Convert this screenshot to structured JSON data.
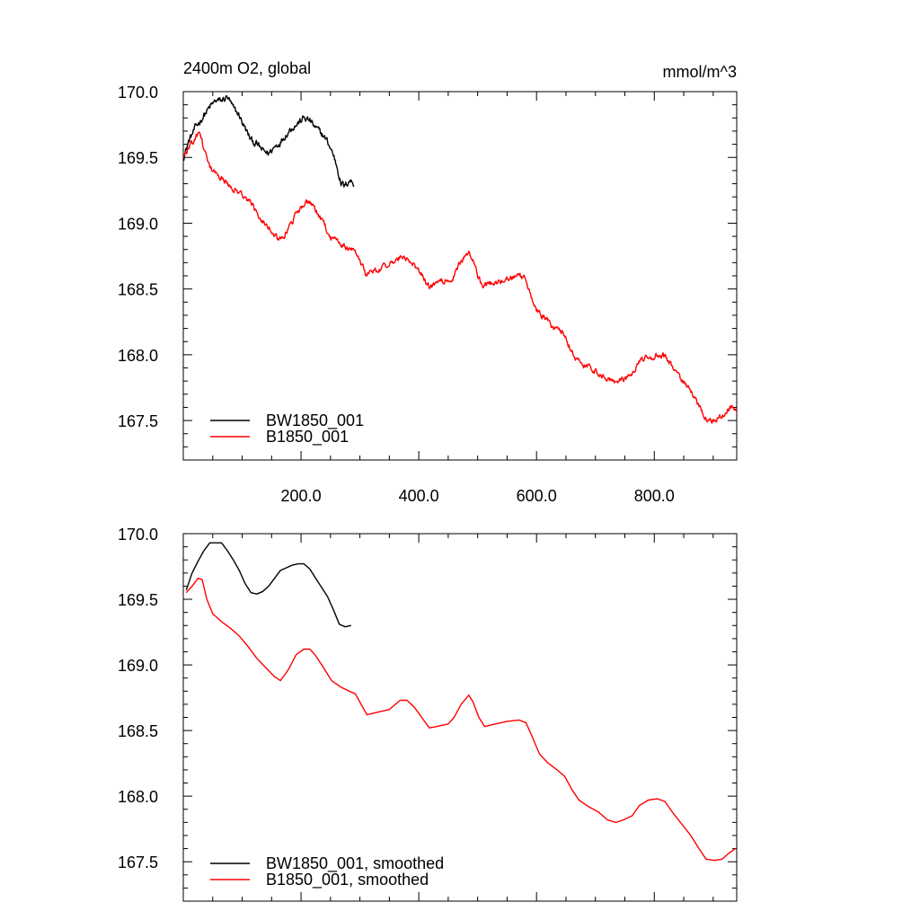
{
  "title_left": "2400m O2, global",
  "title_right": "mmol/m^3",
  "colors": {
    "control": "#000000",
    "experiment": "#ff0000",
    "axis": "#000000"
  },
  "chart_data": [
    {
      "type": "line",
      "panel": "top",
      "title": "2400m O2, global",
      "units": "mmol/m^3",
      "xlim": [
        0,
        940
      ],
      "ylim": [
        167.2,
        170.0
      ],
      "x_ticks": [
        200,
        400,
        600,
        800
      ],
      "x_tick_labels": [
        "200.0",
        "400.0",
        "600.0",
        "800.0"
      ],
      "y_ticks": [
        167.5,
        168.0,
        168.5,
        169.0,
        169.5,
        170.0
      ],
      "y_tick_labels": [
        "167.5",
        "168.0",
        "168.5",
        "169.0",
        "169.5",
        "170.0"
      ],
      "legend_position": "bottom-left",
      "series": [
        {
          "name": "BW1850_001",
          "color_key": "control",
          "noise": 0.022,
          "points": [
            [
              0,
              169.5
            ],
            [
              10,
              169.63
            ],
            [
              20,
              169.72
            ],
            [
              35,
              169.82
            ],
            [
              45,
              169.88
            ],
            [
              55,
              169.93
            ],
            [
              65,
              169.93
            ],
            [
              75,
              169.96
            ],
            [
              85,
              169.87
            ],
            [
              95,
              169.82
            ],
            [
              105,
              169.72
            ],
            [
              115,
              169.63
            ],
            [
              125,
              169.6
            ],
            [
              135,
              169.55
            ],
            [
              145,
              169.53
            ],
            [
              155,
              169.58
            ],
            [
              165,
              169.62
            ],
            [
              175,
              169.68
            ],
            [
              185,
              169.73
            ],
            [
              195,
              169.76
            ],
            [
              205,
              169.8
            ],
            [
              215,
              169.78
            ],
            [
              225,
              169.72
            ],
            [
              235,
              169.68
            ],
            [
              245,
              169.62
            ],
            [
              255,
              169.52
            ],
            [
              262,
              169.42
            ],
            [
              268,
              169.3
            ],
            [
              275,
              169.28
            ],
            [
              282,
              169.33
            ],
            [
              290,
              169.3
            ]
          ]
        },
        {
          "name": "B1850_001",
          "color_key": "experiment",
          "noise": 0.018,
          "points": [
            [
              0,
              169.5
            ],
            [
              10,
              169.58
            ],
            [
              20,
              169.63
            ],
            [
              28,
              169.7
            ],
            [
              35,
              169.55
            ],
            [
              45,
              169.42
            ],
            [
              60,
              169.35
            ],
            [
              75,
              169.3
            ],
            [
              90,
              169.25
            ],
            [
              105,
              169.2
            ],
            [
              120,
              169.12
            ],
            [
              135,
              169.02
            ],
            [
              150,
              168.95
            ],
            [
              160,
              168.88
            ],
            [
              175,
              168.92
            ],
            [
              190,
              169.05
            ],
            [
              205,
              169.15
            ],
            [
              215,
              169.15
            ],
            [
              225,
              169.1
            ],
            [
              235,
              169.02
            ],
            [
              250,
              168.9
            ],
            [
              265,
              168.85
            ],
            [
              280,
              168.8
            ],
            [
              290,
              168.82
            ],
            [
              300,
              168.72
            ],
            [
              310,
              168.62
            ],
            [
              330,
              168.65
            ],
            [
              350,
              168.68
            ],
            [
              370,
              168.75
            ],
            [
              380,
              168.73
            ],
            [
              390,
              168.68
            ],
            [
              400,
              168.65
            ],
            [
              410,
              168.57
            ],
            [
              420,
              168.5
            ],
            [
              430,
              168.55
            ],
            [
              450,
              168.56
            ],
            [
              460,
              168.6
            ],
            [
              470,
              168.7
            ],
            [
              485,
              168.78
            ],
            [
              492,
              168.72
            ],
            [
              500,
              168.6
            ],
            [
              510,
              168.53
            ],
            [
              530,
              168.55
            ],
            [
              550,
              168.58
            ],
            [
              570,
              168.6
            ],
            [
              580,
              168.58
            ],
            [
              590,
              168.47
            ],
            [
              600,
              168.33
            ],
            [
              615,
              168.28
            ],
            [
              630,
              168.2
            ],
            [
              645,
              168.18
            ],
            [
              655,
              168.08
            ],
            [
              665,
              167.98
            ],
            [
              680,
              167.92
            ],
            [
              700,
              167.88
            ],
            [
              720,
              167.82
            ],
            [
              735,
              167.8
            ],
            [
              745,
              167.82
            ],
            [
              760,
              167.83
            ],
            [
              775,
              167.95
            ],
            [
              790,
              167.98
            ],
            [
              805,
              167.99
            ],
            [
              820,
              167.98
            ],
            [
              835,
              167.88
            ],
            [
              850,
              167.78
            ],
            [
              865,
              167.7
            ],
            [
              880,
              167.57
            ],
            [
              890,
              167.5
            ],
            [
              905,
              167.51
            ],
            [
              918,
              167.55
            ],
            [
              930,
              167.6
            ],
            [
              940,
              167.6
            ]
          ]
        }
      ]
    },
    {
      "type": "line",
      "panel": "bottom",
      "xlim": [
        0,
        940
      ],
      "ylim": [
        167.2,
        170.0
      ],
      "x_ticks": [
        200,
        400,
        600,
        800
      ],
      "x_tick_labels": [],
      "y_ticks": [
        167.5,
        168.0,
        168.5,
        169.0,
        169.5,
        170.0
      ],
      "y_tick_labels": [
        "167.5",
        "168.0",
        "168.5",
        "169.0",
        "169.5",
        "170.0"
      ],
      "legend_position": "bottom-left",
      "series": [
        {
          "name": "BW1850_001, smoothed",
          "color_key": "control",
          "noise": 0,
          "points": [
            [
              5,
              169.57
            ],
            [
              15,
              169.7
            ],
            [
              25,
              169.79
            ],
            [
              35,
              169.87
            ],
            [
              45,
              169.93
            ],
            [
              55,
              169.93
            ],
            [
              65,
              169.93
            ],
            [
              75,
              169.87
            ],
            [
              85,
              169.8
            ],
            [
              95,
              169.72
            ],
            [
              105,
              169.62
            ],
            [
              115,
              169.55
            ],
            [
              125,
              169.54
            ],
            [
              135,
              169.56
            ],
            [
              145,
              169.6
            ],
            [
              155,
              169.66
            ],
            [
              165,
              169.72
            ],
            [
              175,
              169.74
            ],
            [
              185,
              169.76
            ],
            [
              195,
              169.77
            ],
            [
              205,
              169.77
            ],
            [
              215,
              169.73
            ],
            [
              225,
              169.66
            ],
            [
              235,
              169.59
            ],
            [
              245,
              169.52
            ],
            [
              255,
              169.42
            ],
            [
              265,
              169.31
            ],
            [
              275,
              169.29
            ],
            [
              285,
              169.3
            ]
          ]
        },
        {
          "name": "B1850_001, smoothed",
          "color_key": "experiment",
          "noise": 0,
          "points": [
            [
              5,
              169.55
            ],
            [
              15,
              169.6
            ],
            [
              25,
              169.66
            ],
            [
              32,
              169.65
            ],
            [
              40,
              169.5
            ],
            [
              50,
              169.39
            ],
            [
              65,
              169.33
            ],
            [
              80,
              169.28
            ],
            [
              95,
              169.22
            ],
            [
              110,
              169.14
            ],
            [
              125,
              169.05
            ],
            [
              140,
              168.98
            ],
            [
              155,
              168.91
            ],
            [
              165,
              168.88
            ],
            [
              178,
              168.96
            ],
            [
              192,
              169.08
            ],
            [
              205,
              169.12
            ],
            [
              215,
              169.12
            ],
            [
              225,
              169.07
            ],
            [
              238,
              168.98
            ],
            [
              252,
              168.88
            ],
            [
              268,
              168.83
            ],
            [
              282,
              168.8
            ],
            [
              292,
              168.78
            ],
            [
              302,
              168.7
            ],
            [
              312,
              168.62
            ],
            [
              330,
              168.64
            ],
            [
              350,
              168.66
            ],
            [
              368,
              168.73
            ],
            [
              380,
              168.73
            ],
            [
              392,
              168.68
            ],
            [
              405,
              168.6
            ],
            [
              418,
              168.52
            ],
            [
              430,
              168.53
            ],
            [
              450,
              168.55
            ],
            [
              460,
              168.6
            ],
            [
              472,
              168.7
            ],
            [
              485,
              168.77
            ],
            [
              492,
              168.72
            ],
            [
              502,
              168.6
            ],
            [
              512,
              168.53
            ],
            [
              530,
              168.55
            ],
            [
              550,
              168.57
            ],
            [
              570,
              168.58
            ],
            [
              582,
              168.56
            ],
            [
              592,
              168.46
            ],
            [
              605,
              168.32
            ],
            [
              620,
              168.25
            ],
            [
              635,
              168.2
            ],
            [
              648,
              168.15
            ],
            [
              660,
              168.05
            ],
            [
              672,
              167.97
            ],
            [
              688,
              167.92
            ],
            [
              705,
              167.88
            ],
            [
              720,
              167.82
            ],
            [
              735,
              167.8
            ],
            [
              748,
              167.82
            ],
            [
              762,
              167.85
            ],
            [
              775,
              167.93
            ],
            [
              790,
              167.97
            ],
            [
              805,
              167.98
            ],
            [
              818,
              167.96
            ],
            [
              832,
              167.87
            ],
            [
              848,
              167.78
            ],
            [
              862,
              167.7
            ],
            [
              876,
              167.6
            ],
            [
              888,
              167.52
            ],
            [
              902,
              167.51
            ],
            [
              915,
              167.52
            ],
            [
              928,
              167.57
            ],
            [
              938,
              167.6
            ]
          ]
        }
      ]
    }
  ]
}
